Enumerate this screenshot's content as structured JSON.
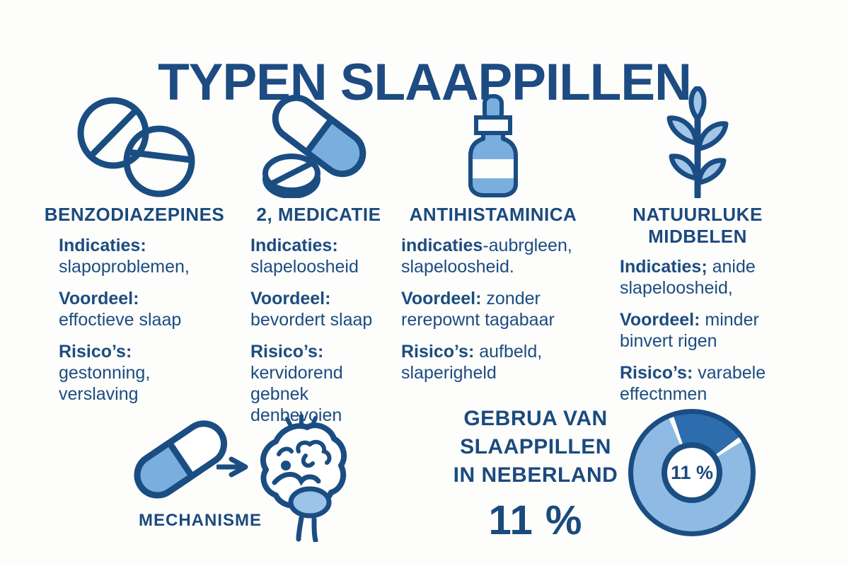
{
  "title": "TYPEN SLAAPPILLEN",
  "colors": {
    "navy": "#1b4a7d",
    "outline_navy": "#1a4d82",
    "mid_blue": "#79aede",
    "light_blue": "#a3c6e8",
    "ring_blue": "#8fbae3",
    "wedge_blue": "#2d6cad",
    "background": "#ffffff"
  },
  "columns": [
    {
      "icon": "tablets-icon",
      "header_lines": [
        "BENZODIAZEPINES"
      ],
      "sections": [
        {
          "label": "Indicaties:",
          "after": "",
          "lines": [
            "slapoproblemen,"
          ]
        },
        {
          "label": "Voordeel:",
          "after": "",
          "lines": [
            "effoctieve slaap"
          ]
        },
        {
          "label": "Risico’s:",
          "after": "",
          "lines": [
            "gestonning,",
            "verslaving"
          ]
        }
      ]
    },
    {
      "icon": "capsule-pill-icon",
      "header_lines": [
        "2, MEDICATIE"
      ],
      "sections": [
        {
          "label": "Indicaties:",
          "after": "",
          "lines": [
            "slapeloosheid"
          ]
        },
        {
          "label": "Voordeel:",
          "after": "",
          "lines": [
            "bevordert slaap"
          ]
        },
        {
          "label": "Risico’s:",
          "after": "",
          "lines": [
            "kervidorend",
            "gebnek",
            "denbevoien"
          ]
        }
      ]
    },
    {
      "icon": "dropper-bottle-icon",
      "header_lines": [
        "ANTIHISTAMINICA"
      ],
      "sections": [
        {
          "label": "indicaties",
          "after": "-aubrgleen,",
          "lines": [
            "slapeloosheid."
          ]
        },
        {
          "label": "Voordeel:",
          "after": " zonder",
          "lines": [
            "rerepownt tagabaar"
          ]
        },
        {
          "label": "Risico’s:",
          "after": " aufbeld,",
          "lines": [
            "slaperigheld"
          ]
        }
      ]
    },
    {
      "icon": "plant-icon",
      "header_lines": [
        "NATUURLUKE",
        "MIDBELEN"
      ],
      "sections": [
        {
          "label": "Indicaties;",
          "after": " anide",
          "lines": [
            "slapeloosheid,"
          ]
        },
        {
          "label": "Voordeel:",
          "after": " minder",
          "lines": [
            "binvert rigen"
          ]
        },
        {
          "label": "Risico’s:",
          "after": " varabele",
          "lines": [
            "effectnmen"
          ]
        }
      ]
    }
  ],
  "mechanism": {
    "label": "MECHANISME",
    "icons": [
      "capsule-icon",
      "arrow-right-icon",
      "brain-icon"
    ]
  },
  "usage": {
    "lines": [
      "GEBRUA VAN",
      "SLAAPPILLEN",
      "IN NEBERLAND"
    ],
    "value": "11 %"
  },
  "chart_data": {
    "type": "donut",
    "title": "GEBRUA VAN SLAAPPILLEN IN NEBERLAND",
    "center_label": "11 %",
    "slices": [
      {
        "label": "slaappillen-gebruikers",
        "value": 11,
        "color": "#2d6cad"
      },
      {
        "label": "overig",
        "value": 89,
        "color": "#8fbae3"
      }
    ],
    "render": {
      "wedge_start_deg": 342,
      "wedge_end_deg": 53,
      "gap_deg": 5,
      "gap_color": "#fdfdfc"
    }
  }
}
